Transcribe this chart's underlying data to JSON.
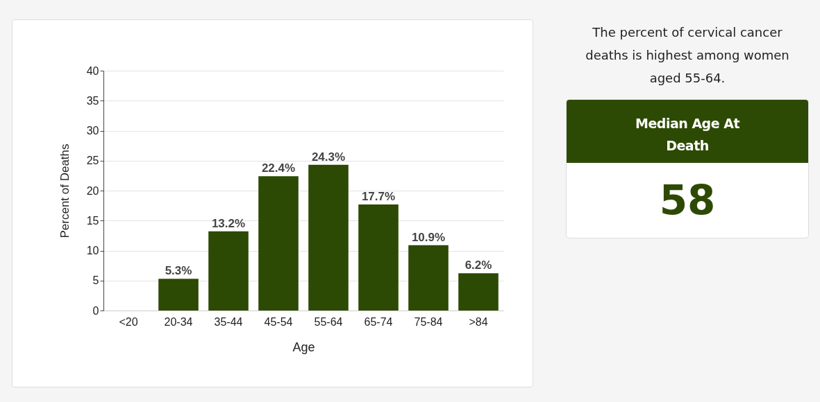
{
  "chart_data": [
    {
      "type": "bar",
      "xlabel": "Age",
      "ylabel": "Percent of Deaths",
      "categories": [
        "<20",
        "20-34",
        "35-44",
        "45-54",
        "55-64",
        "65-74",
        "75-84",
        ">84"
      ],
      "values": [
        null,
        5.3,
        13.2,
        22.4,
        24.3,
        17.7,
        10.9,
        6.2
      ],
      "value_labels": [
        null,
        "5.3%",
        "13.2%",
        "22.4%",
        "24.3%",
        "17.7%",
        "10.9%",
        "6.2%"
      ],
      "color": "#2d4a04",
      "ylim": [
        0,
        40
      ],
      "yticks": [
        0,
        5,
        10,
        15,
        20,
        25,
        30,
        35,
        40
      ],
      "grid": "y"
    },
    {
      "type": "other",
      "title": "Median Age At Death",
      "annotations": [
        "The percent of cervical cancer deaths is highest among women aged 55-64.",
        "58"
      ]
    }
  ]
}
